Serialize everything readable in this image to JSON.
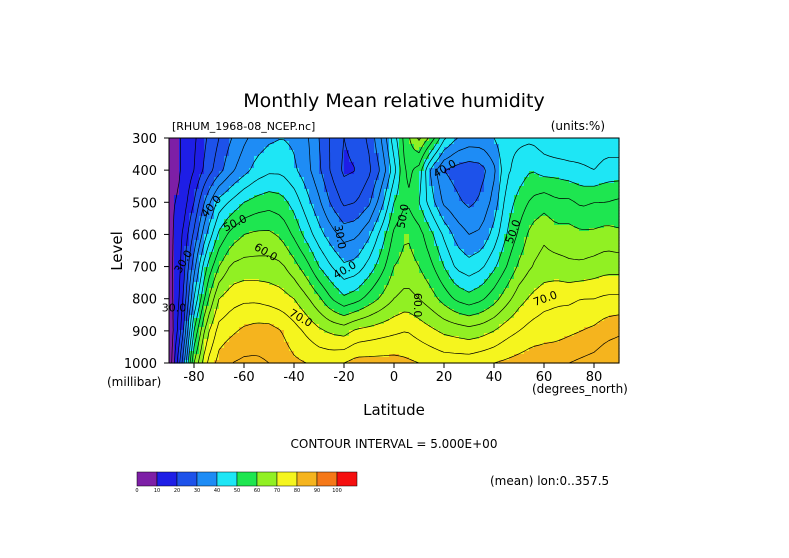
{
  "chart_data": {
    "type": "heatmap",
    "title": "Monthly Mean relative humidity",
    "dataset_label": "[RHUM_1968-08_NCEP.nc]",
    "units_label": "(units:%)",
    "xlabel": "Latitude",
    "xunits": "(degrees_north)",
    "ylabel": "Level",
    "yunits": "(millibar)",
    "xlim": [
      -90,
      90
    ],
    "ylim": [
      1000,
      300
    ],
    "x_ticks": [
      -80,
      -60,
      -40,
      -20,
      0,
      20,
      40,
      60,
      80
    ],
    "x_tick_labels": [
      "-80",
      "-60",
      "-40",
      "-20",
      "0",
      "20",
      "40",
      "60",
      "80"
    ],
    "y_ticks": [
      300,
      400,
      500,
      600,
      700,
      800,
      900,
      1000
    ],
    "y_tick_labels": [
      "300",
      "400",
      "500",
      "600",
      "700",
      "800",
      "900",
      "1000"
    ],
    "contour_interval_text": "CONTOUR INTERVAL = 5.000E+00",
    "mean_info": "(mean) lon:0..357.5",
    "contour_labels": [
      "30.0",
      "40.0",
      "50.0",
      "60.0",
      "30.0",
      "40.0",
      "50.0",
      "40.0",
      "50.0",
      "70.0",
      "60.0",
      "70.0",
      "30.0"
    ],
    "colorbar": {
      "boundaries": [
        0,
        10,
        20,
        30,
        40,
        50,
        60,
        70,
        80,
        90,
        100
      ],
      "labels": [
        "0",
        "10",
        "20",
        "30",
        "40",
        "50",
        "60",
        "70",
        "80",
        "90",
        "100"
      ],
      "colors": [
        "#7d1fa6",
        "#1e1ee6",
        "#1d52ea",
        "#1e8cf5",
        "#1ee6f5",
        "#1ee650",
        "#91f023",
        "#f5f51e",
        "#f5b41e",
        "#f57818",
        "#f50f0f"
      ]
    },
    "field": {
      "x": [
        -90,
        -85,
        -80,
        -75,
        -70,
        -65,
        -60,
        -55,
        -50,
        -45,
        -40,
        -35,
        -30,
        -25,
        -20,
        -15,
        -10,
        -5,
        0,
        5,
        10,
        15,
        20,
        25,
        30,
        35,
        40,
        45,
        50,
        55,
        60,
        65,
        70,
        75,
        80,
        85,
        90
      ],
      "y": [
        300,
        400,
        500,
        600,
        700,
        800,
        900,
        1000
      ],
      "values": [
        [
          8,
          10,
          14,
          20,
          25,
          30,
          34,
          37,
          39,
          40,
          39,
          36,
          30,
          24,
          20,
          22,
          26,
          35,
          48,
          58,
          66,
          58,
          46,
          40,
          38,
          38,
          40,
          44,
          44,
          44,
          42,
          40,
          40,
          41,
          41,
          42,
          42
        ],
        [
          8,
          10,
          15,
          22,
          28,
          34,
          38,
          42,
          44,
          44,
          41,
          37,
          31,
          24,
          19,
          20,
          24,
          31,
          43,
          57,
          53,
          38,
          30,
          28,
          27,
          28,
          34,
          44,
          47,
          50,
          48,
          48,
          47,
          46,
          45,
          47,
          47
        ],
        [
          9,
          11,
          20,
          32,
          42,
          46,
          50,
          52,
          53,
          52,
          48,
          42,
          36,
          29,
          24,
          25,
          29,
          38,
          50,
          55,
          50,
          42,
          34,
          31,
          29,
          31,
          37,
          47,
          52,
          56,
          58,
          56,
          56,
          54,
          55,
          55,
          56
        ],
        [
          8,
          14,
          26,
          40,
          51,
          57,
          60,
          61,
          61,
          59,
          54,
          48,
          42,
          37,
          33,
          34,
          39,
          47,
          56,
          60,
          57,
          51,
          44,
          38,
          35,
          36,
          42,
          50,
          56,
          62,
          64,
          62,
          62,
          61,
          61,
          62,
          61
        ],
        [
          8,
          15,
          33,
          50,
          60,
          66,
          67,
          67,
          67,
          66,
          62,
          57,
          50,
          45,
          41,
          42,
          47,
          53,
          60,
          62,
          60,
          56,
          50,
          44,
          42,
          44,
          49,
          55,
          61,
          65,
          67,
          67,
          66,
          66,
          67,
          68,
          68
        ],
        [
          7,
          17,
          40,
          58,
          70,
          73,
          74,
          74,
          73,
          72,
          70,
          66,
          61,
          55,
          51,
          53,
          57,
          61,
          65,
          67,
          65,
          62,
          58,
          54,
          52,
          54,
          58,
          63,
          68,
          71,
          73,
          74,
          74,
          75,
          75,
          76,
          76
        ],
        [
          5,
          20,
          50,
          68,
          77,
          79,
          81,
          82,
          82,
          80,
          77,
          74,
          71,
          69,
          68,
          71,
          72,
          73,
          74,
          75,
          73,
          71,
          69,
          68,
          67,
          68,
          70,
          73,
          75,
          77,
          78,
          78,
          79,
          80,
          81,
          83,
          84
        ],
        [
          5,
          28,
          60,
          75,
          82,
          85,
          86,
          86,
          85,
          83,
          81,
          80,
          79,
          79,
          80,
          82,
          82,
          82,
          82,
          81,
          80,
          79,
          78,
          78,
          78,
          79,
          80,
          81,
          82,
          83,
          83,
          84,
          85,
          86,
          87,
          89,
          90
        ]
      ]
    }
  }
}
